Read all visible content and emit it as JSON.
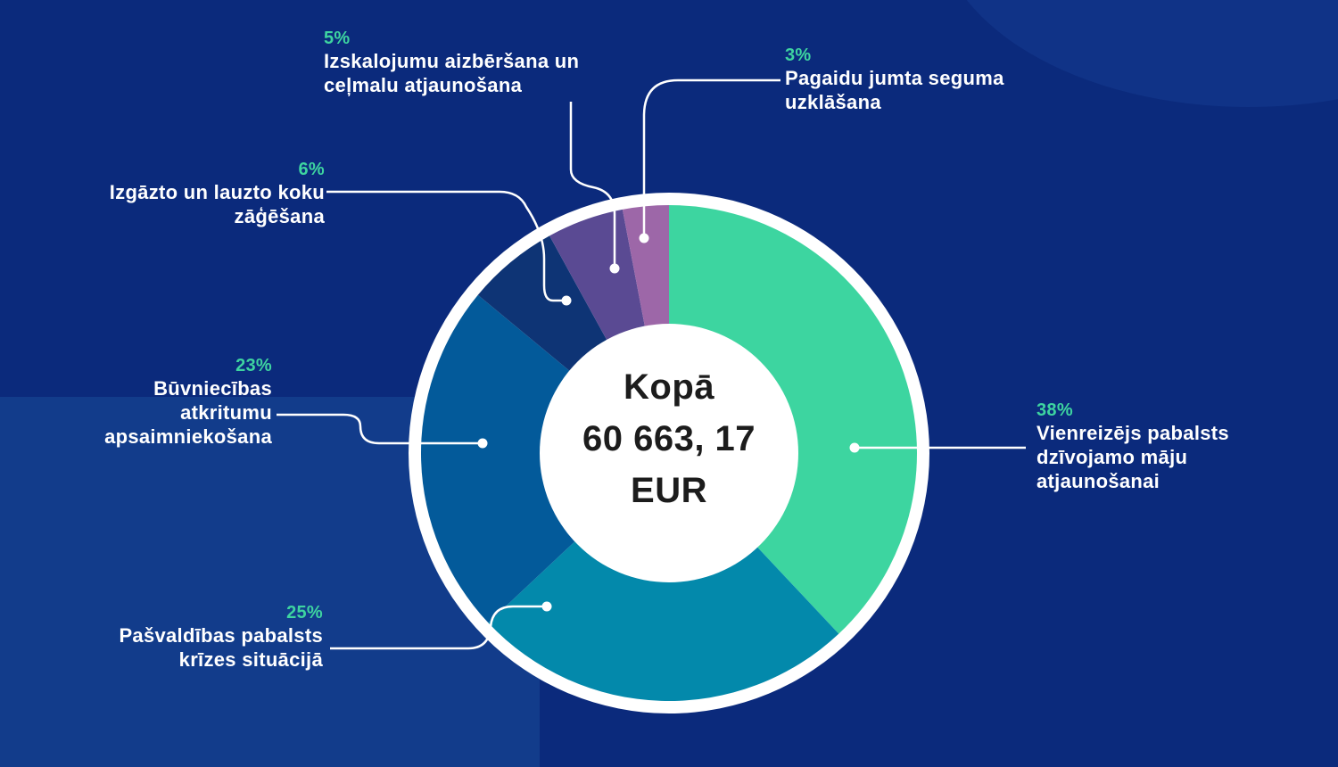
{
  "colors": {
    "background": "#0b2a7c",
    "ring": "#ffffff",
    "pct_text": "#3ed4a0",
    "label_text": "#ffffff",
    "leader": "#ffffff"
  },
  "center": {
    "line1": "Kopā",
    "line2": "60 663, 17",
    "line3": "EUR"
  },
  "labels": {
    "s1": {
      "pct": "38%",
      "name": "Vienreizējs pabalsts\ndzīvojamo māju\natjaunošanai"
    },
    "s2": {
      "pct": "25%",
      "name": "Pašvaldības pabalsts\nkrīzes situācijā"
    },
    "s3": {
      "pct": "23%",
      "name": "Būvniecības\natkritumu\napsaimniekošana"
    },
    "s4": {
      "pct": "6%",
      "name": "Izgāzto un lauzto koku\nzāģēšana"
    },
    "s5": {
      "pct": "5%",
      "name": "Izskalojumu aizbēršana un\nceļmalu atjaunošana"
    },
    "s6": {
      "pct": "3%",
      "name": "Pagaidu jumta seguma\nuzklāšana"
    }
  },
  "chart_data": {
    "type": "pie",
    "categories": [
      "Vienreizējs pabalsts dzīvojamo māju atjaunošanai",
      "Pašvaldības pabalsts krīzes situācijā",
      "Būvniecības atkritumu apsaimniekošana",
      "Izgāzto un lauzto koku zāģēšana",
      "Izskalojumu aizbēršana un ceļmalu atjaunošana",
      "Pagaidu jumta seguma uzklāšana"
    ],
    "values": [
      38,
      25,
      23,
      6,
      5,
      3
    ],
    "colors": [
      "#3dd5a0",
      "#0389ab",
      "#035a9a",
      "#0e3475",
      "#5a4a93",
      "#9d67a8"
    ],
    "donut": true,
    "center_label": "Kopā 60 663, 17 EUR"
  }
}
